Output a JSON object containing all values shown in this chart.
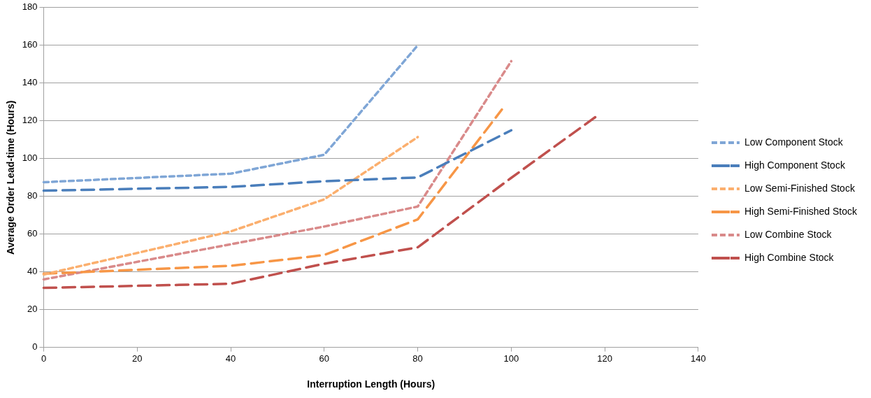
{
  "chart_data": {
    "type": "line",
    "xlabel": "Interruption Length (Hours)",
    "ylabel": "Average Order Lead-time (Hours)",
    "xlim": [
      0,
      140
    ],
    "xticks": [
      0,
      20,
      40,
      60,
      80,
      100,
      120,
      140
    ],
    "ylim": [
      0,
      180
    ],
    "yticks": [
      0,
      20,
      40,
      60,
      80,
      100,
      120,
      140,
      160,
      180
    ],
    "grid": "y",
    "legend": "right",
    "marker": "none",
    "series": [
      {
        "name": "Low Component Stock",
        "color": "#7fa6d6",
        "line_style": "dotted",
        "x": [
          0,
          40,
          60,
          80
        ],
        "values": [
          87.5,
          92,
          102,
          160
        ]
      },
      {
        "name": "High Component Stock",
        "color": "#4a7ebb",
        "line_style": "dashed",
        "x": [
          0,
          20,
          40,
          60,
          80,
          100
        ],
        "values": [
          83,
          84,
          85,
          88,
          90,
          115
        ]
      },
      {
        "name": "Low Semi-Finished Stock",
        "color": "#fbaf6e",
        "line_style": "dotted",
        "x": [
          0,
          40,
          60,
          80
        ],
        "values": [
          38.6,
          61.4,
          78.4,
          111.4
        ]
      },
      {
        "name": "High Semi-Finished Stock",
        "color": "#f79646",
        "line_style": "dashed",
        "x": [
          0,
          40,
          60,
          80,
          98
        ],
        "values": [
          39,
          43.2,
          48.9,
          67.8,
          126
        ]
      },
      {
        "name": "Low Combine Stock",
        "color": "#d98a8a",
        "line_style": "dotted",
        "x": [
          0,
          40,
          60,
          80,
          100
        ],
        "values": [
          36,
          54.6,
          64,
          74.6,
          151.6
        ]
      },
      {
        "name": "High Combine Stock",
        "color": "#c0504d",
        "line_style": "dashed",
        "x": [
          0,
          40,
          60,
          80,
          100,
          118
        ],
        "values": [
          31.5,
          33.7,
          44.3,
          53,
          89.8,
          122
        ]
      }
    ]
  }
}
